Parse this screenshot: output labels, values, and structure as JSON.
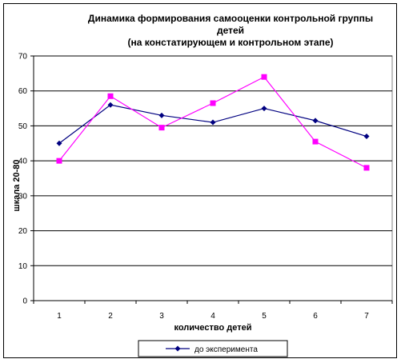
{
  "chart_data": {
    "type": "line",
    "title_lines": [
      "Динамика формирования  самооценки контрольной  группы",
      "детей",
      "(на констатирующем и контрольном  этапе)"
    ],
    "xlabel": "количество детей",
    "ylabel": "шкала 20-80",
    "categories": [
      "1",
      "2",
      "3",
      "4",
      "5",
      "6",
      "7"
    ],
    "ylim": [
      0,
      70
    ],
    "yticks": [
      0,
      10,
      20,
      30,
      40,
      50,
      60,
      70
    ],
    "grid": true,
    "legend_position": "bottom",
    "series": [
      {
        "name": "до эксперимента",
        "values": [
          45,
          56,
          53,
          51,
          55,
          51.5,
          47
        ],
        "color": "#000080",
        "marker": "diamond"
      },
      {
        "values": [
          40,
          58.5,
          49.5,
          56.5,
          64,
          45.5,
          38
        ],
        "color": "#ff00ff",
        "marker": "square"
      }
    ]
  }
}
